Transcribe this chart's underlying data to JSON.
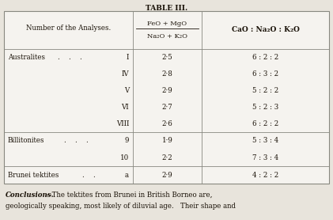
{
  "title": "TABLE III.",
  "bg_color": "#e8e4dc",
  "table_bg": "#f5f3ef",
  "text_color": "#1a1208",
  "line_color": "#888880",
  "col1_header": "Number of the Analyses.",
  "col2_header_line1": "FeO + MgO",
  "col2_header_line2": "Na₂O + K₂O",
  "col3_header": "CaO : Na₂O : K₂O",
  "australites": [
    {
      "num": "I",
      "val1": "2·5",
      "val2": "6 : 2 : 2"
    },
    {
      "num": "IV",
      "val1": "2·8",
      "val2": "6 : 3 : 2"
    },
    {
      "num": "V",
      "val1": "2·9",
      "val2": "5 : 2 : 2"
    },
    {
      "num": "VI",
      "val1": "2·7",
      "val2": "5 : 2 : 3"
    },
    {
      "num": "VIII",
      "val1": "2·6",
      "val2": "6 : 2 : 2"
    }
  ],
  "billitonites": [
    {
      "num": "9",
      "val1": "1·9",
      "val2": "5 : 3 : 4"
    },
    {
      "num": "10",
      "val1": "2·2",
      "val2": "7 : 3 : 4"
    }
  ],
  "brunei": [
    {
      "num": "a",
      "val1": "2·9",
      "val2": "4 : 2 : 2"
    }
  ],
  "footer_italic": "Conclusions.",
  "footer_text": "—The tektites from Brunei in British Borneo are,",
  "footer_text2": "geologically speaking, most likely of diluvial age.   Their shape and"
}
